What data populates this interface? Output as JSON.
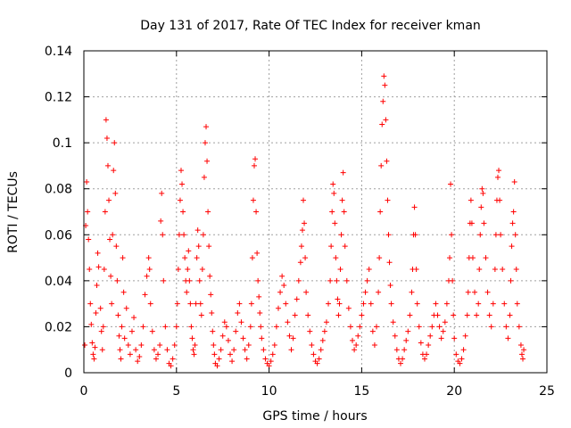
{
  "chart_data": {
    "type": "scatter",
    "title": "Day 131 of 2017, Rate Of TEC Index for receiver kman",
    "xlabel": "GPS time / hours",
    "ylabel": "ROTI / TECUs",
    "xlim": [
      0,
      25
    ],
    "ylim": [
      0,
      0.14
    ],
    "xticks": [
      0,
      5,
      10,
      15,
      20,
      25
    ],
    "xtick_labels": [
      "0",
      "5",
      "10",
      "15",
      "20",
      "25"
    ],
    "yticks": [
      0,
      0.02,
      0.04,
      0.06,
      0.08,
      0.1,
      0.12,
      0.14
    ],
    "ytick_labels": [
      "0",
      "0.02",
      "0.04",
      "0.06",
      "0.08",
      "0.1",
      "0.12",
      "0.14"
    ],
    "grid": true,
    "legend": "none",
    "marker": "+",
    "color": "#ff0000",
    "points": [
      [
        0.05,
        0.012
      ],
      [
        0.1,
        0.064
      ],
      [
        0.15,
        0.083
      ],
      [
        0.2,
        0.07
      ],
      [
        0.25,
        0.058
      ],
      [
        0.3,
        0.045
      ],
      [
        0.35,
        0.03
      ],
      [
        0.4,
        0.021
      ],
      [
        0.45,
        0.013
      ],
      [
        0.5,
        0.008
      ],
      [
        0.55,
        0.006
      ],
      [
        0.6,
        0.011
      ],
      [
        0.65,
        0.026
      ],
      [
        0.7,
        0.038
      ],
      [
        0.75,
        0.052
      ],
      [
        0.8,
        0.046
      ],
      [
        0.9,
        0.028
      ],
      [
        0.95,
        0.018
      ],
      [
        1.0,
        0.01
      ],
      [
        1.05,
        0.02
      ],
      [
        1.1,
        0.045
      ],
      [
        1.15,
        0.07
      ],
      [
        1.2,
        0.11
      ],
      [
        1.25,
        0.102
      ],
      [
        1.3,
        0.09
      ],
      [
        1.35,
        0.075
      ],
      [
        1.4,
        0.058
      ],
      [
        1.45,
        0.042
      ],
      [
        1.5,
        0.03
      ],
      [
        1.55,
        0.06
      ],
      [
        1.6,
        0.088
      ],
      [
        1.65,
        0.1
      ],
      [
        1.7,
        0.078
      ],
      [
        1.75,
        0.055
      ],
      [
        1.8,
        0.04
      ],
      [
        1.85,
        0.025
      ],
      [
        1.9,
        0.016
      ],
      [
        1.95,
        0.01
      ],
      [
        2.0,
        0.006
      ],
      [
        2.05,
        0.02
      ],
      [
        2.1,
        0.05
      ],
      [
        2.15,
        0.035
      ],
      [
        2.2,
        0.015
      ],
      [
        2.3,
        0.028
      ],
      [
        2.4,
        0.012
      ],
      [
        2.5,
        0.008
      ],
      [
        2.6,
        0.018
      ],
      [
        2.7,
        0.024
      ],
      [
        2.8,
        0.01
      ],
      [
        2.9,
        0.005
      ],
      [
        3.0,
        0.007
      ],
      [
        3.1,
        0.012
      ],
      [
        3.2,
        0.02
      ],
      [
        3.3,
        0.034
      ],
      [
        3.4,
        0.042
      ],
      [
        3.5,
        0.05
      ],
      [
        3.55,
        0.045
      ],
      [
        3.6,
        0.03
      ],
      [
        3.7,
        0.018
      ],
      [
        3.8,
        0.01
      ],
      [
        3.9,
        0.006
      ],
      [
        4.0,
        0.008
      ],
      [
        4.1,
        0.012
      ],
      [
        4.15,
        0.066
      ],
      [
        4.2,
        0.078
      ],
      [
        4.25,
        0.06
      ],
      [
        4.3,
        0.04
      ],
      [
        4.4,
        0.02
      ],
      [
        4.5,
        0.01
      ],
      [
        4.6,
        0.004
      ],
      [
        4.7,
        0.003
      ],
      [
        4.8,
        0.006
      ],
      [
        4.9,
        0.012
      ],
      [
        5.0,
        0.02
      ],
      [
        5.05,
        0.03
      ],
      [
        5.1,
        0.045
      ],
      [
        5.15,
        0.06
      ],
      [
        5.2,
        0.075
      ],
      [
        5.25,
        0.088
      ],
      [
        5.3,
        0.082
      ],
      [
        5.35,
        0.07
      ],
      [
        5.4,
        0.06
      ],
      [
        5.45,
        0.05
      ],
      [
        5.5,
        0.04
      ],
      [
        5.55,
        0.035
      ],
      [
        5.6,
        0.045
      ],
      [
        5.65,
        0.053
      ],
      [
        5.7,
        0.04
      ],
      [
        5.75,
        0.03
      ],
      [
        5.8,
        0.02
      ],
      [
        5.85,
        0.015
      ],
      [
        5.9,
        0.01
      ],
      [
        5.95,
        0.008
      ],
      [
        6.0,
        0.012
      ],
      [
        6.05,
        0.03
      ],
      [
        6.1,
        0.05
      ],
      [
        6.15,
        0.062
      ],
      [
        6.2,
        0.055
      ],
      [
        6.25,
        0.04
      ],
      [
        6.3,
        0.03
      ],
      [
        6.35,
        0.025
      ],
      [
        6.4,
        0.045
      ],
      [
        6.45,
        0.06
      ],
      [
        6.5,
        0.085
      ],
      [
        6.55,
        0.1
      ],
      [
        6.6,
        0.107
      ],
      [
        6.65,
        0.092
      ],
      [
        6.7,
        0.07
      ],
      [
        6.75,
        0.055
      ],
      [
        6.8,
        0.042
      ],
      [
        6.85,
        0.034
      ],
      [
        6.9,
        0.026
      ],
      [
        6.95,
        0.018
      ],
      [
        7.0,
        0.012
      ],
      [
        7.05,
        0.008
      ],
      [
        7.1,
        0.004
      ],
      [
        7.2,
        0.003
      ],
      [
        7.3,
        0.006
      ],
      [
        7.4,
        0.01
      ],
      [
        7.5,
        0.016
      ],
      [
        7.6,
        0.022
      ],
      [
        7.7,
        0.02
      ],
      [
        7.8,
        0.014
      ],
      [
        7.9,
        0.008
      ],
      [
        8.0,
        0.005
      ],
      [
        8.1,
        0.01
      ],
      [
        8.2,
        0.018
      ],
      [
        8.3,
        0.026
      ],
      [
        8.4,
        0.03
      ],
      [
        8.5,
        0.022
      ],
      [
        8.6,
        0.015
      ],
      [
        8.7,
        0.01
      ],
      [
        8.8,
        0.006
      ],
      [
        8.9,
        0.012
      ],
      [
        9.0,
        0.02
      ],
      [
        9.05,
        0.03
      ],
      [
        9.1,
        0.05
      ],
      [
        9.15,
        0.075
      ],
      [
        9.2,
        0.09
      ],
      [
        9.25,
        0.093
      ],
      [
        9.3,
        0.07
      ],
      [
        9.35,
        0.052
      ],
      [
        9.4,
        0.04
      ],
      [
        9.45,
        0.033
      ],
      [
        9.5,
        0.026
      ],
      [
        9.55,
        0.02
      ],
      [
        9.6,
        0.015
      ],
      [
        9.7,
        0.01
      ],
      [
        9.8,
        0.006
      ],
      [
        9.9,
        0.004
      ],
      [
        10.0,
        0.003
      ],
      [
        10.1,
        0.005
      ],
      [
        10.2,
        0.008
      ],
      [
        10.3,
        0.012
      ],
      [
        10.4,
        0.02
      ],
      [
        10.5,
        0.028
      ],
      [
        10.6,
        0.035
      ],
      [
        10.7,
        0.042
      ],
      [
        10.8,
        0.038
      ],
      [
        10.9,
        0.03
      ],
      [
        11.0,
        0.022
      ],
      [
        11.1,
        0.016
      ],
      [
        11.2,
        0.01
      ],
      [
        11.3,
        0.015
      ],
      [
        11.4,
        0.025
      ],
      [
        11.5,
        0.032
      ],
      [
        11.6,
        0.04
      ],
      [
        11.7,
        0.048
      ],
      [
        11.75,
        0.055
      ],
      [
        11.8,
        0.062
      ],
      [
        11.85,
        0.075
      ],
      [
        11.9,
        0.065
      ],
      [
        11.95,
        0.05
      ],
      [
        12.0,
        0.035
      ],
      [
        12.1,
        0.025
      ],
      [
        12.2,
        0.018
      ],
      [
        12.3,
        0.012
      ],
      [
        12.4,
        0.008
      ],
      [
        12.5,
        0.005
      ],
      [
        12.6,
        0.004
      ],
      [
        12.7,
        0.006
      ],
      [
        12.8,
        0.01
      ],
      [
        12.9,
        0.014
      ],
      [
        13.0,
        0.018
      ],
      [
        13.1,
        0.022
      ],
      [
        13.2,
        0.03
      ],
      [
        13.3,
        0.04
      ],
      [
        13.35,
        0.055
      ],
      [
        13.4,
        0.07
      ],
      [
        13.45,
        0.082
      ],
      [
        13.5,
        0.078
      ],
      [
        13.55,
        0.065
      ],
      [
        13.6,
        0.05
      ],
      [
        13.65,
        0.04
      ],
      [
        13.7,
        0.032
      ],
      [
        13.75,
        0.025
      ],
      [
        13.8,
        0.03
      ],
      [
        13.85,
        0.045
      ],
      [
        13.9,
        0.06
      ],
      [
        13.95,
        0.075
      ],
      [
        14.0,
        0.087
      ],
      [
        14.05,
        0.07
      ],
      [
        14.1,
        0.055
      ],
      [
        14.2,
        0.04
      ],
      [
        14.3,
        0.028
      ],
      [
        14.4,
        0.02
      ],
      [
        14.5,
        0.014
      ],
      [
        14.6,
        0.01
      ],
      [
        14.7,
        0.012
      ],
      [
        14.8,
        0.016
      ],
      [
        14.9,
        0.02
      ],
      [
        15.0,
        0.025
      ],
      [
        15.1,
        0.03
      ],
      [
        15.2,
        0.035
      ],
      [
        15.3,
        0.04
      ],
      [
        15.4,
        0.045
      ],
      [
        15.5,
        0.03
      ],
      [
        15.6,
        0.018
      ],
      [
        15.7,
        0.012
      ],
      [
        15.8,
        0.02
      ],
      [
        15.9,
        0.035
      ],
      [
        15.95,
        0.05
      ],
      [
        16.0,
        0.07
      ],
      [
        16.05,
        0.09
      ],
      [
        16.1,
        0.108
      ],
      [
        16.15,
        0.118
      ],
      [
        16.2,
        0.129
      ],
      [
        16.25,
        0.125
      ],
      [
        16.3,
        0.11
      ],
      [
        16.35,
        0.092
      ],
      [
        16.4,
        0.075
      ],
      [
        16.45,
        0.06
      ],
      [
        16.5,
        0.048
      ],
      [
        16.55,
        0.038
      ],
      [
        16.6,
        0.03
      ],
      [
        16.7,
        0.022
      ],
      [
        16.8,
        0.016
      ],
      [
        16.9,
        0.01
      ],
      [
        17.0,
        0.006
      ],
      [
        17.1,
        0.004
      ],
      [
        17.2,
        0.006
      ],
      [
        17.3,
        0.01
      ],
      [
        17.4,
        0.014
      ],
      [
        17.5,
        0.018
      ],
      [
        17.6,
        0.025
      ],
      [
        17.7,
        0.035
      ],
      [
        17.75,
        0.045
      ],
      [
        17.8,
        0.06
      ],
      [
        17.85,
        0.072
      ],
      [
        17.9,
        0.06
      ],
      [
        17.95,
        0.045
      ],
      [
        18.0,
        0.03
      ],
      [
        18.1,
        0.02
      ],
      [
        18.2,
        0.013
      ],
      [
        18.3,
        0.008
      ],
      [
        18.4,
        0.006
      ],
      [
        18.5,
        0.008
      ],
      [
        18.6,
        0.012
      ],
      [
        18.7,
        0.016
      ],
      [
        18.8,
        0.02
      ],
      [
        18.9,
        0.025
      ],
      [
        19.0,
        0.03
      ],
      [
        19.1,
        0.025
      ],
      [
        19.2,
        0.02
      ],
      [
        19.3,
        0.015
      ],
      [
        19.4,
        0.018
      ],
      [
        19.5,
        0.022
      ],
      [
        19.6,
        0.03
      ],
      [
        19.7,
        0.04
      ],
      [
        19.75,
        0.05
      ],
      [
        19.8,
        0.082
      ],
      [
        19.85,
        0.06
      ],
      [
        19.9,
        0.04
      ],
      [
        19.95,
        0.025
      ],
      [
        20.0,
        0.015
      ],
      [
        20.1,
        0.008
      ],
      [
        20.2,
        0.005
      ],
      [
        20.3,
        0.004
      ],
      [
        20.4,
        0.006
      ],
      [
        20.5,
        0.01
      ],
      [
        20.6,
        0.016
      ],
      [
        20.7,
        0.025
      ],
      [
        20.75,
        0.035
      ],
      [
        20.8,
        0.05
      ],
      [
        20.85,
        0.065
      ],
      [
        20.9,
        0.075
      ],
      [
        20.95,
        0.065
      ],
      [
        21.0,
        0.05
      ],
      [
        21.1,
        0.035
      ],
      [
        21.2,
        0.025
      ],
      [
        21.3,
        0.03
      ],
      [
        21.35,
        0.045
      ],
      [
        21.4,
        0.06
      ],
      [
        21.45,
        0.072
      ],
      [
        21.5,
        0.08
      ],
      [
        21.55,
        0.078
      ],
      [
        21.6,
        0.065
      ],
      [
        21.7,
        0.05
      ],
      [
        21.8,
        0.035
      ],
      [
        21.9,
        0.025
      ],
      [
        22.0,
        0.02
      ],
      [
        22.1,
        0.03
      ],
      [
        22.2,
        0.045
      ],
      [
        22.25,
        0.06
      ],
      [
        22.3,
        0.075
      ],
      [
        22.35,
        0.085
      ],
      [
        22.4,
        0.088
      ],
      [
        22.45,
        0.075
      ],
      [
        22.5,
        0.06
      ],
      [
        22.6,
        0.045
      ],
      [
        22.7,
        0.03
      ],
      [
        22.8,
        0.02
      ],
      [
        22.9,
        0.015
      ],
      [
        23.0,
        0.025
      ],
      [
        23.05,
        0.04
      ],
      [
        23.1,
        0.055
      ],
      [
        23.15,
        0.065
      ],
      [
        23.2,
        0.07
      ],
      [
        23.25,
        0.083
      ],
      [
        23.3,
        0.06
      ],
      [
        23.35,
        0.045
      ],
      [
        23.4,
        0.03
      ],
      [
        23.5,
        0.02
      ],
      [
        23.6,
        0.012
      ],
      [
        23.65,
        0.008
      ],
      [
        23.7,
        0.006
      ],
      [
        23.75,
        0.01
      ]
    ]
  }
}
